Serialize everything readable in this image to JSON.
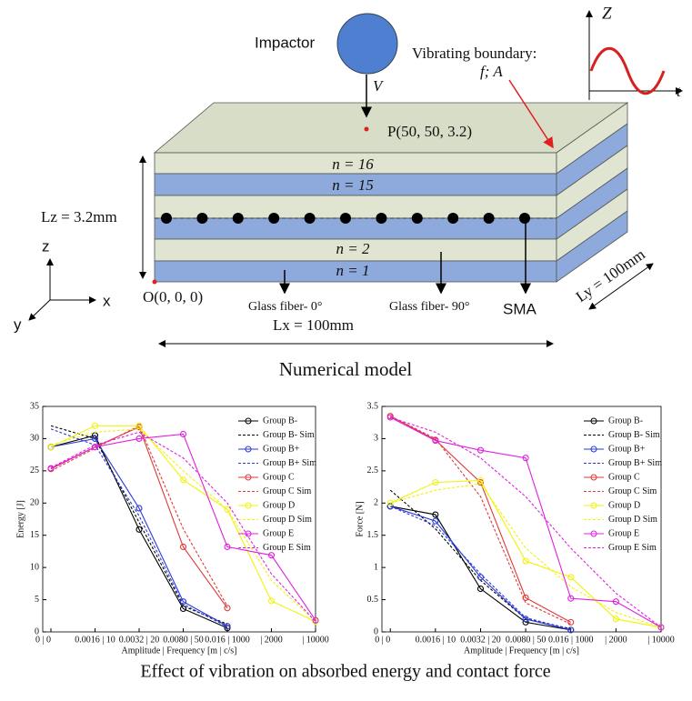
{
  "diagram": {
    "impactor": "Impactor",
    "velocity": "V",
    "point": "P(50, 50, 3.2)",
    "boundary": "Vibrating boundary:",
    "boundary_params": "f; A",
    "z_axis": "Z",
    "t_axis": "t",
    "layers": [
      "n = 16",
      "n = 15",
      "n = 2",
      "n = 1"
    ],
    "lz": "Lz = 3.2mm",
    "lx": "Lx = 100mm",
    "ly": "Ly = 100mm",
    "axes": [
      "z",
      "x",
      "y"
    ],
    "origin": "O(0, 0, 0)",
    "fiber0": "Glass fiber- 0°",
    "fiber90": "Glass fiber- 90°",
    "sma": "SMA",
    "caption": "Numerical model"
  },
  "chart_data": [
    {
      "type": "line",
      "x_label": "Amplitude | Frequency [m | c/s]",
      "y_label": "Energy [J]",
      "categories": [
        "0 | 0",
        "0.0016 | 10",
        "0.0032 | 20",
        "0.0080 | 50",
        "0.016 | 1000",
        "| 2000",
        "| 10000"
      ],
      "ylim": [
        0,
        35
      ],
      "yticks": [
        0,
        5,
        10,
        15,
        20,
        25,
        30,
        35
      ],
      "legend": "upper right",
      "series": [
        {
          "name": "Group B-",
          "color": "#000000",
          "line_style": "solid",
          "marker": "circle",
          "values": [
            28.7,
            30.5,
            15.9,
            3.6,
            0.6,
            null,
            null
          ]
        },
        {
          "name": "Group B- Sim",
          "color": "#000000",
          "line_style": "dashed",
          "marker": "none",
          "values": [
            32,
            30,
            17,
            4,
            1.2,
            null,
            null
          ]
        },
        {
          "name": "Group B+",
          "color": "#2b3bd6",
          "line_style": "solid",
          "marker": "circle",
          "values": [
            28.7,
            30,
            19.2,
            4.7,
            0.9,
            null,
            null
          ]
        },
        {
          "name": "Group B+ Sim",
          "color": "#2b3bd6",
          "line_style": "dashed",
          "marker": "none",
          "values": [
            31.5,
            29,
            18,
            4.3,
            0.8,
            null,
            null
          ]
        },
        {
          "name": "Group C",
          "color": "#e03a3a",
          "line_style": "solid",
          "marker": "circle",
          "values": [
            25.3,
            28.7,
            31.8,
            13.2,
            3.7,
            null,
            null
          ]
        },
        {
          "name": "Group C Sim",
          "color": "#e03a3a",
          "line_style": "dashed",
          "marker": "none",
          "values": [
            25,
            28.5,
            32,
            16,
            4,
            null,
            null
          ]
        },
        {
          "name": "Group D",
          "color": "#f2f20a",
          "line_style": "solid",
          "marker": "circle",
          "values": [
            28.7,
            32,
            32,
            23.6,
            19,
            4.8,
            1.6
          ]
        },
        {
          "name": "Group D Sim",
          "color": "#f2f20a",
          "line_style": "dashed",
          "marker": "none",
          "values": [
            29,
            31,
            31.5,
            25,
            19,
            8,
            1.6
          ]
        },
        {
          "name": "Group E",
          "color": "#e020e0",
          "line_style": "solid",
          "marker": "circle",
          "values": [
            25.4,
            28.7,
            30,
            30.7,
            13.2,
            11.9,
            1.8
          ]
        },
        {
          "name": "Group E Sim",
          "color": "#e020e0",
          "line_style": "dashed",
          "marker": "none",
          "values": [
            25.5,
            29,
            31,
            27,
            20,
            9,
            1.6
          ]
        }
      ]
    },
    {
      "type": "line",
      "x_label": "Amplitude | Frequency [m | c/s]",
      "y_label": "Force [N]",
      "categories": [
        "0 | 0",
        "0.0016 | 10",
        "0.0032 | 20",
        "0.0080 | 50",
        "0.016 | 1000",
        "| 2000",
        "| 10000"
      ],
      "ylim": [
        0,
        3.5
      ],
      "yticks": [
        0,
        0.5,
        1,
        1.5,
        2,
        2.5,
        3,
        3.5
      ],
      "legend": "upper right",
      "series": [
        {
          "name": "Group B-",
          "color": "#000000",
          "line_style": "solid",
          "marker": "circle",
          "values": [
            1.95,
            1.82,
            0.67,
            0.15,
            0.03,
            null,
            null
          ]
        },
        {
          "name": "Group B- Sim",
          "color": "#000000",
          "line_style": "dashed",
          "marker": "none",
          "values": [
            2.2,
            1.6,
            0.8,
            0.2,
            0.05,
            null,
            null
          ]
        },
        {
          "name": "Group B+",
          "color": "#2b3bd6",
          "line_style": "solid",
          "marker": "circle",
          "values": [
            1.95,
            1.72,
            0.85,
            0.2,
            0.03,
            null,
            null
          ]
        },
        {
          "name": "Group B+ Sim",
          "color": "#2b3bd6",
          "line_style": "dashed",
          "marker": "none",
          "values": [
            1.95,
            1.65,
            0.9,
            0.22,
            0.04,
            null,
            null
          ]
        },
        {
          "name": "Group C",
          "color": "#e03a3a",
          "line_style": "solid",
          "marker": "circle",
          "values": [
            3.35,
            2.98,
            2.32,
            0.53,
            0.15,
            null,
            null
          ]
        },
        {
          "name": "Group C Sim",
          "color": "#e03a3a",
          "line_style": "dashed",
          "marker": "none",
          "values": [
            3.35,
            3.0,
            2.1,
            0.45,
            0.12,
            null,
            null
          ]
        },
        {
          "name": "Group D",
          "color": "#f2f20a",
          "line_style": "solid",
          "marker": "circle",
          "values": [
            2.0,
            2.32,
            2.35,
            1.1,
            0.85,
            0.2,
            0.07
          ]
        },
        {
          "name": "Group D Sim",
          "color": "#f2f20a",
          "line_style": "dashed",
          "marker": "none",
          "values": [
            2.0,
            2.2,
            2.3,
            1.3,
            0.7,
            0.3,
            0.07
          ]
        },
        {
          "name": "Group E",
          "color": "#e020e0",
          "line_style": "solid",
          "marker": "circle",
          "values": [
            3.33,
            2.97,
            2.82,
            2.7,
            0.52,
            0.47,
            0.07
          ]
        },
        {
          "name": "Group E Sim",
          "color": "#e020e0",
          "line_style": "dashed",
          "marker": "none",
          "values": [
            3.33,
            3.1,
            2.7,
            2.1,
            1.3,
            0.6,
            0.07
          ]
        }
      ]
    }
  ],
  "caption": "Effect of vibration on absorbed energy and contact force"
}
